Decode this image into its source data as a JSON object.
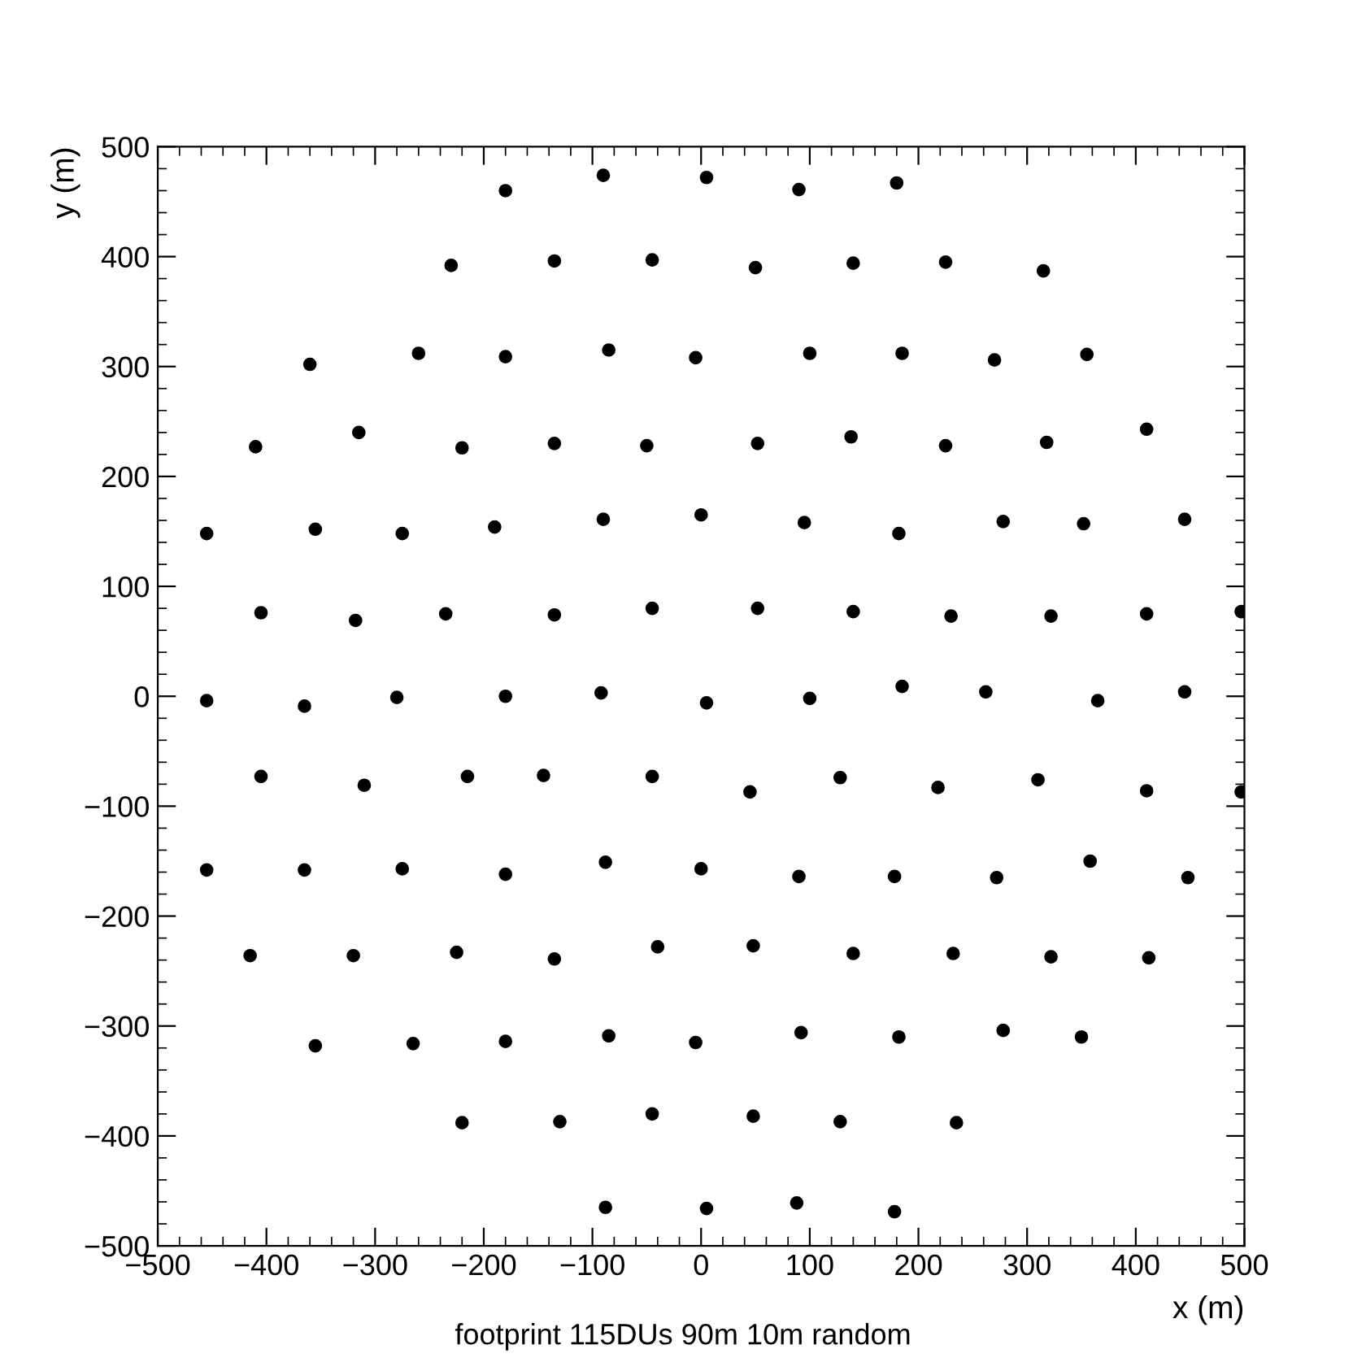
{
  "chart_data": {
    "type": "scatter",
    "xlabel": "x (m)",
    "ylabel": "y (m)",
    "annotations": [
      "footprint 115DUs 90m 10m random"
    ],
    "xlim": [
      -500,
      500
    ],
    "ylim": [
      -500,
      500
    ],
    "xticks": [
      -500,
      -400,
      -300,
      -200,
      -100,
      0,
      100,
      200,
      300,
      400,
      500
    ],
    "yticks": [
      -500,
      -400,
      -300,
      -200,
      -100,
      0,
      100,
      200,
      300,
      400,
      500
    ],
    "grid": false,
    "legend": false,
    "marker": "circle",
    "series": [
      {
        "color": "#000000",
        "x": [
          -180,
          -90,
          5,
          90,
          180,
          -230,
          -135,
          -45,
          50,
          140,
          225,
          315,
          -360,
          -260,
          -180,
          -85,
          -5,
          100,
          185,
          270,
          355,
          -410,
          -315,
          -220,
          -135,
          -50,
          52,
          138,
          225,
          318,
          410,
          -455,
          -355,
          -275,
          -190,
          -90,
          0,
          95,
          182,
          278,
          352,
          445,
          -405,
          -318,
          -235,
          -135,
          -45,
          52,
          140,
          230,
          322,
          410,
          497,
          -455,
          -365,
          -280,
          -180,
          -92,
          5,
          100,
          185,
          262,
          365,
          445,
          -405,
          -310,
          -215,
          -145,
          -45,
          45,
          128,
          218,
          310,
          410,
          497,
          -455,
          -365,
          -275,
          -180,
          -88,
          0,
          90,
          178,
          272,
          358,
          448,
          -415,
          -320,
          -225,
          -135,
          -40,
          48,
          140,
          232,
          322,
          412,
          -355,
          -265,
          -180,
          -85,
          -5,
          92,
          182,
          278,
          350,
          -220,
          -130,
          -45,
          48,
          128,
          235,
          -88,
          5,
          88,
          178
        ],
        "values": [
          460,
          474,
          472,
          461,
          467,
          392,
          396,
          397,
          390,
          394,
          395,
          387,
          302,
          312,
          309,
          315,
          308,
          312,
          312,
          306,
          311,
          227,
          240,
          226,
          230,
          228,
          230,
          236,
          228,
          231,
          243,
          148,
          152,
          148,
          154,
          161,
          165,
          158,
          148,
          159,
          157,
          161,
          76,
          69,
          75,
          74,
          80,
          80,
          77,
          73,
          73,
          75,
          77,
          -4,
          -9,
          -1,
          0,
          3,
          -6,
          -2,
          9,
          4,
          -4,
          4,
          -73,
          -81,
          -73,
          -72,
          -73,
          -87,
          -74,
          -83,
          -76,
          -86,
          -87,
          -158,
          -158,
          -157,
          -162,
          -151,
          -157,
          -164,
          -164,
          -165,
          -150,
          -165,
          -236,
          -236,
          -233,
          -239,
          -228,
          -227,
          -234,
          -234,
          -237,
          -238,
          -318,
          -316,
          -314,
          -309,
          -315,
          -306,
          -310,
          -304,
          -310,
          -388,
          -387,
          -380,
          -382,
          -387,
          -388,
          -465,
          -466,
          -461,
          -469
        ]
      }
    ]
  }
}
